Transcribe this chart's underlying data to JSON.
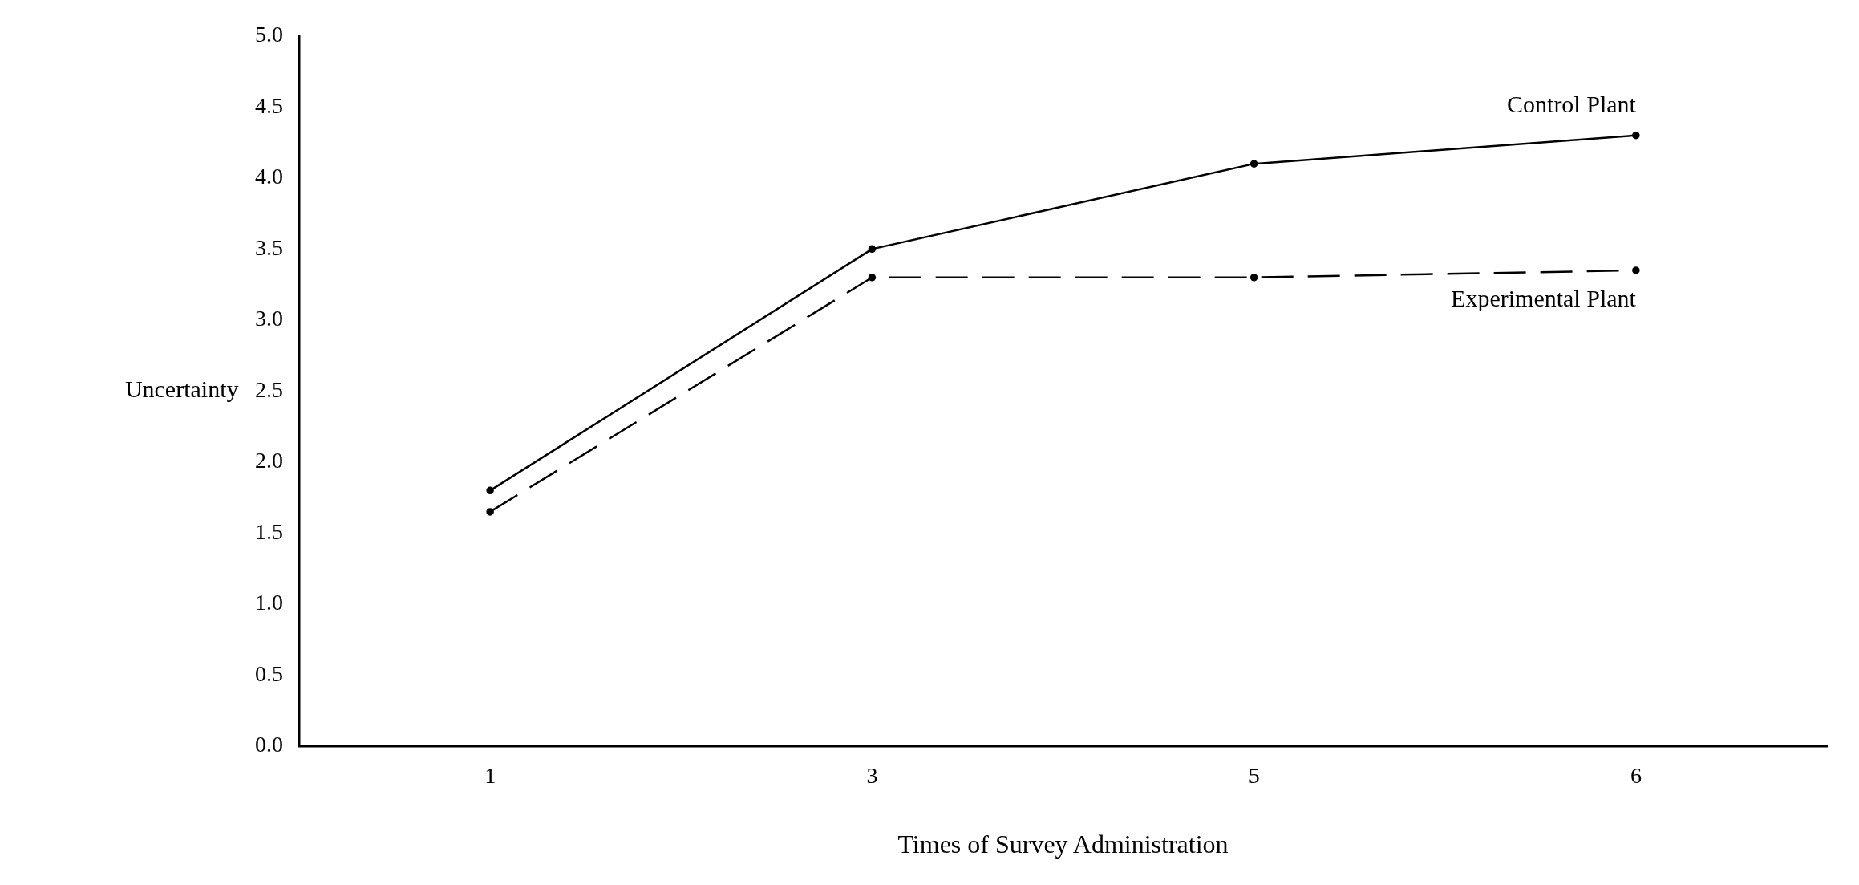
{
  "chart_data": {
    "type": "line",
    "xlabel": "Times of Survey Administration",
    "ylabel": "Uncertainty",
    "categories": [
      "1",
      "3",
      "5",
      "6"
    ],
    "series": [
      {
        "name": "Control Plant",
        "color": "#000000",
        "values": [
          1.8,
          3.5,
          4.1,
          4.3
        ],
        "line_style": "solid"
      },
      {
        "name": "Experimental Plant",
        "color": "#000000",
        "values": [
          1.65,
          3.3,
          3.3,
          3.35
        ],
        "line_style": "dashed"
      }
    ],
    "ylim": [
      0,
      5
    ],
    "yticks": [
      {
        "value": 0,
        "label": "0.0"
      },
      0.5,
      {
        "value": 1,
        "label": "1.0"
      },
      1.5,
      {
        "value": 2,
        "label": "2.0"
      },
      2.5,
      {
        "value": 3,
        "label": "3.0"
      },
      3.5,
      {
        "value": 4,
        "label": "4.0"
      },
      4.5,
      {
        "value": 5,
        "label": "5.0"
      }
    ],
    "grid": false,
    "legend": false,
    "marker": "circle"
  }
}
